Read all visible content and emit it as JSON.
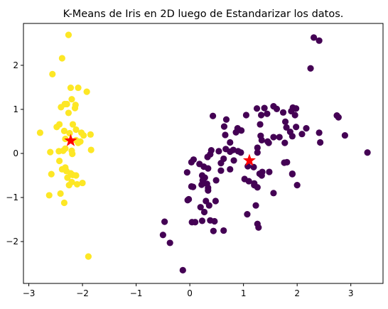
{
  "chart_data": {
    "type": "scatter",
    "title": "K-Means de Iris en 2D luego de Estandarizar los datos.",
    "xlabel": "",
    "ylabel": "",
    "xlim": [
      -3.1,
      3.6
    ],
    "ylim": [
      -2.95,
      2.95
    ],
    "x_ticks": [
      -3,
      -2,
      -1,
      0,
      1,
      2,
      3
    ],
    "y_ticks": [
      -2,
      -1,
      0,
      1,
      2
    ],
    "x_tick_labels": [
      "−3",
      "−2",
      "−1",
      "0",
      "1",
      "2",
      "3"
    ],
    "y_tick_labels": [
      "−2",
      "−1",
      "0",
      "1",
      "2"
    ],
    "grid": false,
    "legend": "none",
    "colors": {
      "cluster_0": "#440154",
      "cluster_1": "#fde725",
      "centroid": "#ff0000"
    },
    "series": [
      {
        "cluster": 1,
        "color": "#fde725",
        "points": [
          [
            -2.26,
            2.69
          ],
          [
            -2.38,
            2.16
          ],
          [
            -2.4,
            1.05
          ],
          [
            -2.56,
            1.8
          ],
          [
            -2.22,
            1.49
          ],
          [
            -2.08,
            1.49
          ],
          [
            -1.92,
            1.4
          ],
          [
            -2.2,
            1.23
          ],
          [
            -2.33,
            1.12
          ],
          [
            -2.29,
            1.12
          ],
          [
            -2.13,
            1.1
          ],
          [
            -2.14,
            1.03
          ],
          [
            -2.26,
            0.92
          ],
          [
            -2.43,
            0.66
          ],
          [
            -2.18,
            0.66
          ],
          [
            -2.12,
            0.54
          ],
          [
            -2.48,
            0.6
          ],
          [
            -2.34,
            0.51
          ],
          [
            -2.79,
            0.47
          ],
          [
            -2.24,
            0.46
          ],
          [
            -2.02,
            0.47
          ],
          [
            -1.98,
            0.41
          ],
          [
            -1.85,
            0.43
          ],
          [
            -2.32,
            0.33
          ],
          [
            -2.12,
            0.3
          ],
          [
            -2.04,
            0.27
          ],
          [
            -2.08,
            0.24
          ],
          [
            -2.32,
            0.11
          ],
          [
            -2.2,
            0.06
          ],
          [
            -1.84,
            0.08
          ],
          [
            -2.36,
            0.06
          ],
          [
            -2.44,
            0.05
          ],
          [
            -2.6,
            0.03
          ],
          [
            -2.19,
            -0.01
          ],
          [
            -2.43,
            -0.17
          ],
          [
            -2.38,
            -0.36
          ],
          [
            -2.32,
            -0.32
          ],
          [
            -2.3,
            -0.4
          ],
          [
            -2.22,
            -0.45
          ],
          [
            -2.18,
            -0.49
          ],
          [
            -2.12,
            -0.5
          ],
          [
            -2.58,
            -0.47
          ],
          [
            -2.28,
            -0.55
          ],
          [
            -2.2,
            -0.65
          ],
          [
            -2.1,
            -0.7
          ],
          [
            -2.0,
            -0.67
          ],
          [
            -2.25,
            -0.72
          ],
          [
            -2.62,
            -0.95
          ],
          [
            -2.41,
            -0.91
          ],
          [
            -2.34,
            -1.12
          ],
          [
            -1.89,
            -2.34
          ]
        ]
      },
      {
        "cluster": 0,
        "color": "#440154",
        "points": [
          [
            2.31,
            2.63
          ],
          [
            2.41,
            2.56
          ],
          [
            2.25,
            1.93
          ],
          [
            1.56,
            1.07
          ],
          [
            1.39,
            1.03
          ],
          [
            1.25,
            1.02
          ],
          [
            1.62,
            1.01
          ],
          [
            1.92,
            1.04
          ],
          [
            1.89,
            0.96
          ],
          [
            1.98,
            1.02
          ],
          [
            1.74,
            0.93
          ],
          [
            1.44,
            0.9
          ],
          [
            1.96,
            0.87
          ],
          [
            1.33,
            0.87
          ],
          [
            1.05,
            0.87
          ],
          [
            0.43,
            0.85
          ],
          [
            2.77,
            0.82
          ],
          [
            2.74,
            0.86
          ],
          [
            0.68,
            0.77
          ],
          [
            1.31,
            0.66
          ],
          [
            1.78,
            0.72
          ],
          [
            1.8,
            0.59
          ],
          [
            1.98,
            0.6
          ],
          [
            2.17,
            0.57
          ],
          [
            1.87,
            0.49
          ],
          [
            2.09,
            0.44
          ],
          [
            2.41,
            0.47
          ],
          [
            2.89,
            0.41
          ],
          [
            1.32,
            0.4
          ],
          [
            1.91,
            0.39
          ],
          [
            1.67,
            0.37
          ],
          [
            1.56,
            0.37
          ],
          [
            1.34,
            0.3
          ],
          [
            1.45,
            0.27
          ],
          [
            1.47,
            0.24
          ],
          [
            1.77,
            0.24
          ],
          [
            2.43,
            0.25
          ],
          [
            0.64,
            0.61
          ],
          [
            0.66,
            0.42
          ],
          [
            0.89,
            0.57
          ],
          [
            0.96,
            0.52
          ],
          [
            0.86,
            0.48
          ],
          [
            0.75,
            0.25
          ],
          [
            1.26,
            0.13
          ],
          [
            1.26,
            0.02
          ],
          [
            0.4,
            0.07
          ],
          [
            0.54,
            0.05
          ],
          [
            0.67,
            0.1
          ],
          [
            0.81,
            0.08
          ],
          [
            0.9,
            0.05
          ],
          [
            0.95,
            0.02
          ],
          [
            0.75,
            0.04
          ],
          [
            0.38,
            -0.02
          ],
          [
            0.33,
            -0.08
          ],
          [
            0.63,
            -0.12
          ],
          [
            0.82,
            -0.16
          ],
          [
            0.58,
            -0.22
          ],
          [
            0.07,
            -0.14
          ],
          [
            0.03,
            -0.2
          ],
          [
            0.18,
            -0.24
          ],
          [
            0.26,
            -0.3
          ],
          [
            0.34,
            -0.34
          ],
          [
            0.58,
            -0.39
          ],
          [
            0.75,
            -0.36
          ],
          [
            1.08,
            -0.29
          ],
          [
            1.19,
            -0.31
          ],
          [
            1.35,
            -0.42
          ],
          [
            1.48,
            -0.42
          ],
          [
            1.3,
            -0.46
          ],
          [
            1.76,
            -0.21
          ],
          [
            1.81,
            -0.2
          ],
          [
            1.91,
            -0.46
          ],
          [
            1.91,
            -0.47
          ],
          [
            1.34,
            -0.5
          ],
          [
            1.02,
            -0.58
          ],
          [
            1.1,
            -0.63
          ],
          [
            1.2,
            -0.68
          ],
          [
            1.2,
            -0.72
          ],
          [
            1.26,
            -0.77
          ],
          [
            1.56,
            -0.9
          ],
          [
            2.0,
            -0.72
          ],
          [
            -0.05,
            -0.43
          ],
          [
            0.23,
            -0.5
          ],
          [
            0.28,
            -0.55
          ],
          [
            0.24,
            -0.61
          ],
          [
            0.32,
            -0.69
          ],
          [
            0.49,
            -0.61
          ],
          [
            0.22,
            -0.71
          ],
          [
            0.34,
            -0.78
          ],
          [
            0.06,
            -0.76
          ],
          [
            0.03,
            -0.75
          ],
          [
            0.34,
            -0.84
          ],
          [
            -0.02,
            -1.04
          ],
          [
            -0.04,
            -1.06
          ],
          [
            0.3,
            -1.08
          ],
          [
            0.48,
            -1.08
          ],
          [
            0.2,
            -1.22
          ],
          [
            0.36,
            -1.18
          ],
          [
            0.27,
            -1.33
          ],
          [
            0.23,
            -1.53
          ],
          [
            0.04,
            -1.56
          ],
          [
            0.1,
            -1.56
          ],
          [
            0.38,
            -1.52
          ],
          [
            0.46,
            -1.54
          ],
          [
            0.63,
            -1.75
          ],
          [
            0.44,
            -1.76
          ],
          [
            -0.47,
            -1.55
          ],
          [
            -0.5,
            -1.85
          ],
          [
            -0.37,
            -2.03
          ],
          [
            1.07,
            -1.38
          ],
          [
            1.23,
            -1.18
          ],
          [
            1.26,
            -1.6
          ],
          [
            1.28,
            -1.68
          ],
          [
            -0.13,
            -2.65
          ],
          [
            3.31,
            0.02
          ]
        ]
      }
    ],
    "centroids": [
      [
        -2.22,
        0.29
      ],
      [
        1.11,
        -0.16
      ]
    ]
  }
}
